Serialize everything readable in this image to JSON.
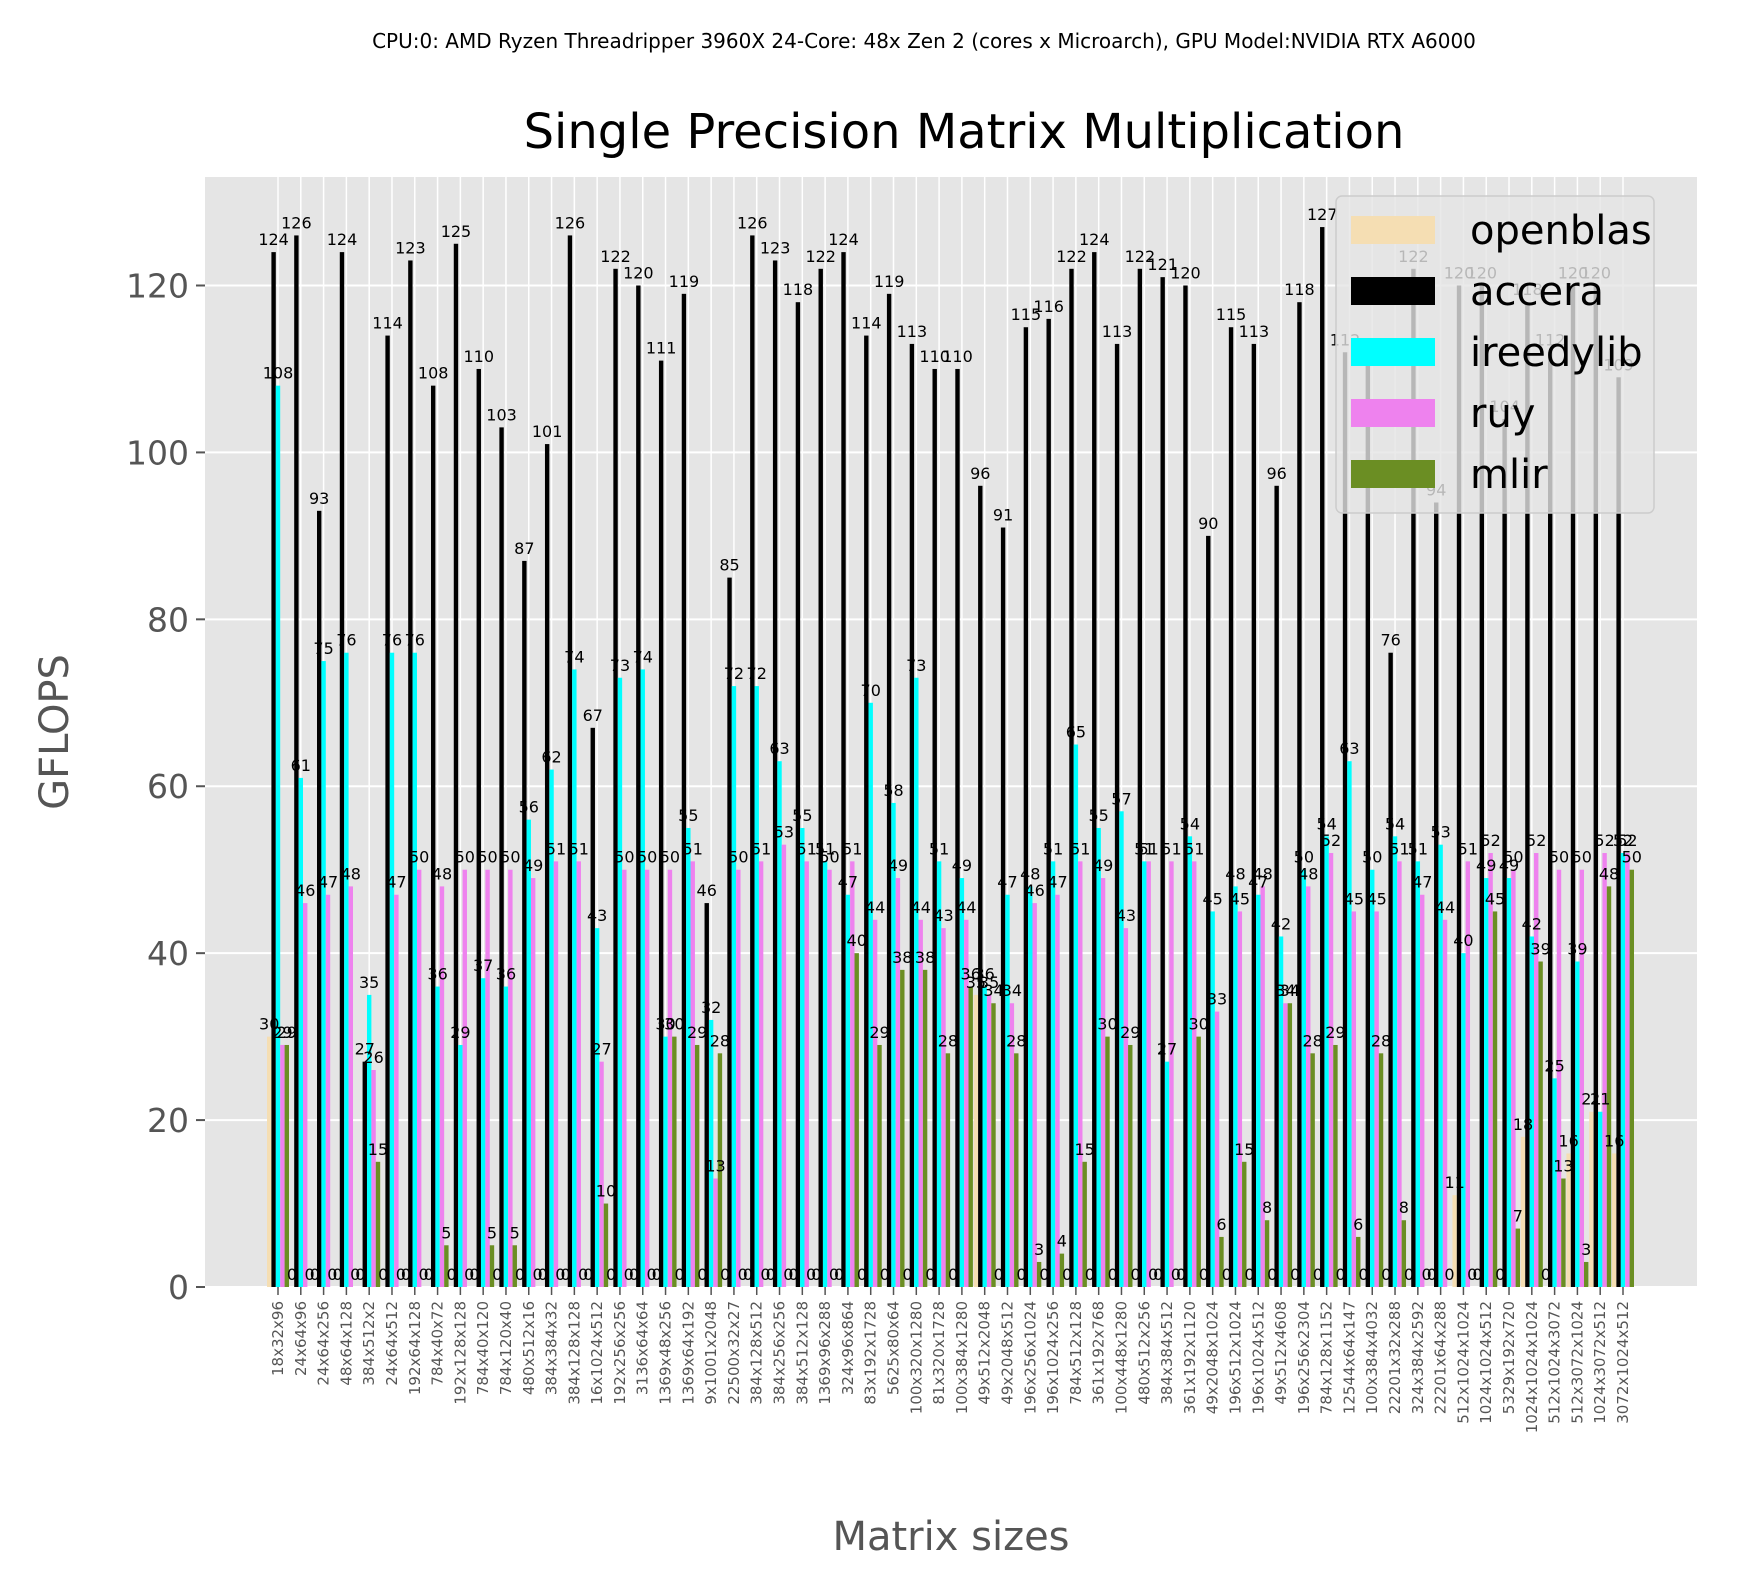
{
  "header": "CPU:0: AMD Ryzen Threadripper 3960X 24-Core: 48x Zen 2 (cores x Microarch), GPU Model:NVIDIA RTX A6000",
  "chart_data": {
    "type": "bar",
    "title": "Single Precision Matrix Multiplication",
    "xlabel": "Matrix sizes",
    "ylabel": "GFLOPS",
    "ylim": [
      0,
      133
    ],
    "yticks": [
      0,
      20,
      40,
      60,
      80,
      100,
      120
    ],
    "grid": true,
    "legend_position": "top-right",
    "categories": [
      "18x32x96",
      "24x64x96",
      "24x64x256",
      "48x64x128",
      "384x512x2",
      "24x64x512",
      "192x64x128",
      "784x40x72",
      "192x128x128",
      "784x40x120",
      "784x120x40",
      "480x512x16",
      "384x384x32",
      "384x128x128",
      "16x1024x512",
      "192x256x256",
      "3136x64x64",
      "1369x48x256",
      "1369x64x192",
      "9x1001x2048",
      "22500x32x27",
      "384x128x512",
      "384x256x256",
      "384x512x128",
      "1369x96x288",
      "324x96x864",
      "83x192x1728",
      "5625x80x64",
      "100x320x1280",
      "81x320x1728",
      "100x384x1280",
      "49x512x2048",
      "49x2048x512",
      "196x256x1024",
      "196x1024x256",
      "784x512x128",
      "361x192x768",
      "100x448x1280",
      "480x512x256",
      "384x384x512",
      "361x192x1120",
      "49x2048x1024",
      "196x512x1024",
      "196x1024x512",
      "49x512x4608",
      "196x256x2304",
      "784x128x1152",
      "12544x64x147",
      "100x384x4032",
      "22201x32x288",
      "324x384x2592",
      "22201x64x288",
      "512x1024x1024",
      "1024x1024x512",
      "5329x192x720",
      "1024x1024x1024",
      "512x1024x3072",
      "512x3072x1024",
      "1024x3072x512",
      "3072x1024x512"
    ],
    "series": [
      {
        "name": "openblas",
        "color": "#f5deb3",
        "values": [
          30,
          0,
          0,
          0,
          0,
          0,
          0,
          0,
          0,
          0,
          0,
          0,
          0,
          0,
          0,
          0,
          0,
          0,
          0,
          0,
          0,
          0,
          0,
          0,
          0,
          0,
          0,
          0,
          0,
          0,
          0,
          35,
          0,
          0,
          0,
          0,
          0,
          0,
          0,
          0,
          0,
          0,
          0,
          0,
          0,
          0,
          0,
          0,
          0,
          0,
          0,
          0,
          11,
          0,
          0,
          18,
          0,
          16,
          21,
          16
        ]
      },
      {
        "name": "accera",
        "color": "#000000",
        "values": [
          124,
          126,
          93,
          124,
          27,
          114,
          123,
          108,
          125,
          110,
          103,
          87,
          101,
          126,
          67,
          122,
          120,
          111,
          119,
          46,
          85,
          126,
          123,
          118,
          122,
          124,
          114,
          119,
          113,
          110,
          110,
          96,
          91,
          115,
          116,
          122,
          124,
          113,
          122,
          121,
          120,
          90,
          115,
          113,
          96,
          118,
          127,
          112,
          111,
          76,
          122,
          94,
          120,
          120,
          104,
          118,
          112,
          120,
          120,
          109
        ]
      },
      {
        "name": "ireedylib",
        "color": "#00ffff",
        "values": [
          108,
          61,
          75,
          76,
          35,
          76,
          76,
          36,
          29,
          37,
          36,
          56,
          62,
          74,
          43,
          73,
          74,
          30,
          55,
          32,
          72,
          72,
          63,
          55,
          51,
          47,
          70,
          58,
          73,
          51,
          49,
          36,
          47,
          48,
          51,
          65,
          55,
          57,
          51,
          27,
          54,
          45,
          48,
          47,
          42,
          50,
          54,
          63,
          50,
          54,
          51,
          53,
          40,
          49,
          49,
          42,
          25,
          39,
          21,
          52
        ]
      },
      {
        "name": "ruy",
        "color": "#ee82ee",
        "values": [
          29,
          46,
          47,
          48,
          26,
          47,
          50,
          48,
          50,
          50,
          50,
          49,
          51,
          51,
          27,
          50,
          50,
          50,
          51,
          13,
          50,
          51,
          53,
          51,
          50,
          51,
          44,
          49,
          44,
          43,
          44,
          35,
          34,
          46,
          47,
          51,
          49,
          43,
          51,
          51,
          51,
          33,
          45,
          48,
          34,
          48,
          52,
          45,
          45,
          51,
          47,
          44,
          51,
          52,
          50,
          52,
          50,
          50,
          52,
          52
        ]
      },
      {
        "name": "mlir",
        "color": "#6b8e23",
        "values": [
          29,
          0,
          0,
          0,
          15,
          0,
          0,
          5,
          0,
          5,
          5,
          0,
          0,
          0,
          10,
          0,
          0,
          30,
          29,
          28,
          0,
          0,
          0,
          0,
          0,
          40,
          29,
          38,
          38,
          28,
          36,
          34,
          28,
          3,
          4,
          15,
          30,
          29,
          0,
          0,
          30,
          6,
          15,
          8,
          34,
          28,
          29,
          6,
          28,
          8,
          0,
          0,
          0,
          45,
          7,
          39,
          13,
          3,
          48,
          50
        ]
      }
    ]
  }
}
